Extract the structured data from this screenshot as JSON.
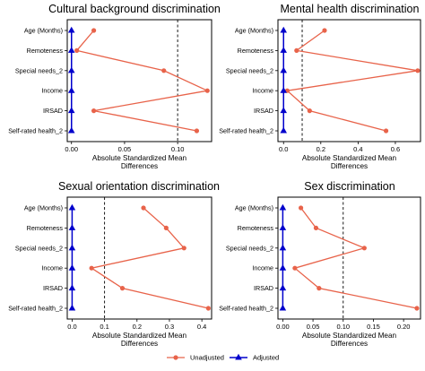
{
  "chart_data": [
    {
      "type": "scatter",
      "title": "Cultural background discrimination",
      "xlabel": [
        "Absolute Standardized Mean",
        "Differences"
      ],
      "categories": [
        "Age (Months)",
        "Remoteness",
        "Special needs_2",
        "Income",
        "IRSAD",
        "Self-rated health_2"
      ],
      "xlim": [
        -0.004,
        0.132
      ],
      "xticks": [
        0.0,
        0.05,
        0.1
      ],
      "xtick_labels": [
        "0.00",
        "0.05",
        "0.10"
      ],
      "threshold": 0.1,
      "series": [
        {
          "name": "Unadjusted",
          "values": [
            0.021,
            0.005,
            0.087,
            0.128,
            0.021,
            0.118
          ]
        },
        {
          "name": "Adjusted",
          "values": [
            0,
            0,
            0,
            0,
            0,
            0
          ]
        }
      ]
    },
    {
      "type": "scatter",
      "title": "Mental health discrimination",
      "xlabel": [
        "Absolute Standardized Mean",
        "Differences"
      ],
      "categories": [
        "Age (Months)",
        "Remoteness",
        "Special needs_2",
        "Income",
        "IRSAD",
        "Self-rated health_2"
      ],
      "xlim": [
        -0.03,
        0.735
      ],
      "xticks": [
        0.0,
        0.2,
        0.4,
        0.6
      ],
      "xtick_labels": [
        "0.0",
        "0.2",
        "0.4",
        "0.6"
      ],
      "threshold": 0.1,
      "series": [
        {
          "name": "Unadjusted",
          "values": [
            0.22,
            0.07,
            0.72,
            0.02,
            0.14,
            0.55
          ]
        },
        {
          "name": "Adjusted",
          "values": [
            0,
            0,
            0,
            0,
            0,
            0
          ]
        }
      ]
    },
    {
      "type": "scatter",
      "title": "Sexual orientation discrimination",
      "xlabel": [
        "Absolute Standardized Mean",
        "Differences"
      ],
      "categories": [
        "Age (Months)",
        "Remoteness",
        "Special needs_2",
        "Income",
        "IRSAD",
        "Self-rated health_2"
      ],
      "xlim": [
        -0.015,
        0.43
      ],
      "xticks": [
        0.0,
        0.1,
        0.2,
        0.3,
        0.4
      ],
      "xtick_labels": [
        "0.0",
        "0.1",
        "0.2",
        "0.3",
        "0.4"
      ],
      "threshold": 0.1,
      "series": [
        {
          "name": "Unadjusted",
          "values": [
            0.22,
            0.29,
            0.345,
            0.06,
            0.155,
            0.42
          ]
        },
        {
          "name": "Adjusted",
          "values": [
            0,
            0,
            0,
            0,
            0,
            0
          ]
        }
      ]
    },
    {
      "type": "scatter",
      "title": "Sex discrimination",
      "xlabel": [
        "Absolute Standardized Mean",
        "Differences"
      ],
      "categories": [
        "Age (Months)",
        "Remoteness",
        "Special needs_2",
        "Income",
        "IRSAD",
        "Self-rated health_2"
      ],
      "xlim": [
        -0.008,
        0.228
      ],
      "xticks": [
        0.0,
        0.05,
        0.1,
        0.15,
        0.2
      ],
      "xtick_labels": [
        "0.00",
        "0.05",
        "0.10",
        "0.15",
        "0.20"
      ],
      "threshold": 0.1,
      "series": [
        {
          "name": "Unadjusted",
          "values": [
            0.03,
            0.055,
            0.135,
            0.02,
            0.06,
            0.222
          ]
        },
        {
          "name": "Adjusted",
          "values": [
            0,
            0,
            0,
            0,
            0,
            0
          ]
        }
      ]
    }
  ],
  "legend": {
    "position": "bottom",
    "items": [
      {
        "label": "Unadjusted",
        "color": "#E8634A",
        "marker": "circle"
      },
      {
        "label": "Adjusted",
        "color": "#0000CC",
        "marker": "triangle"
      }
    ]
  },
  "colors": {
    "unadjusted": "#E8634A",
    "adjusted": "#0000CC",
    "threshold": "#000000",
    "frame": "#000000"
  }
}
